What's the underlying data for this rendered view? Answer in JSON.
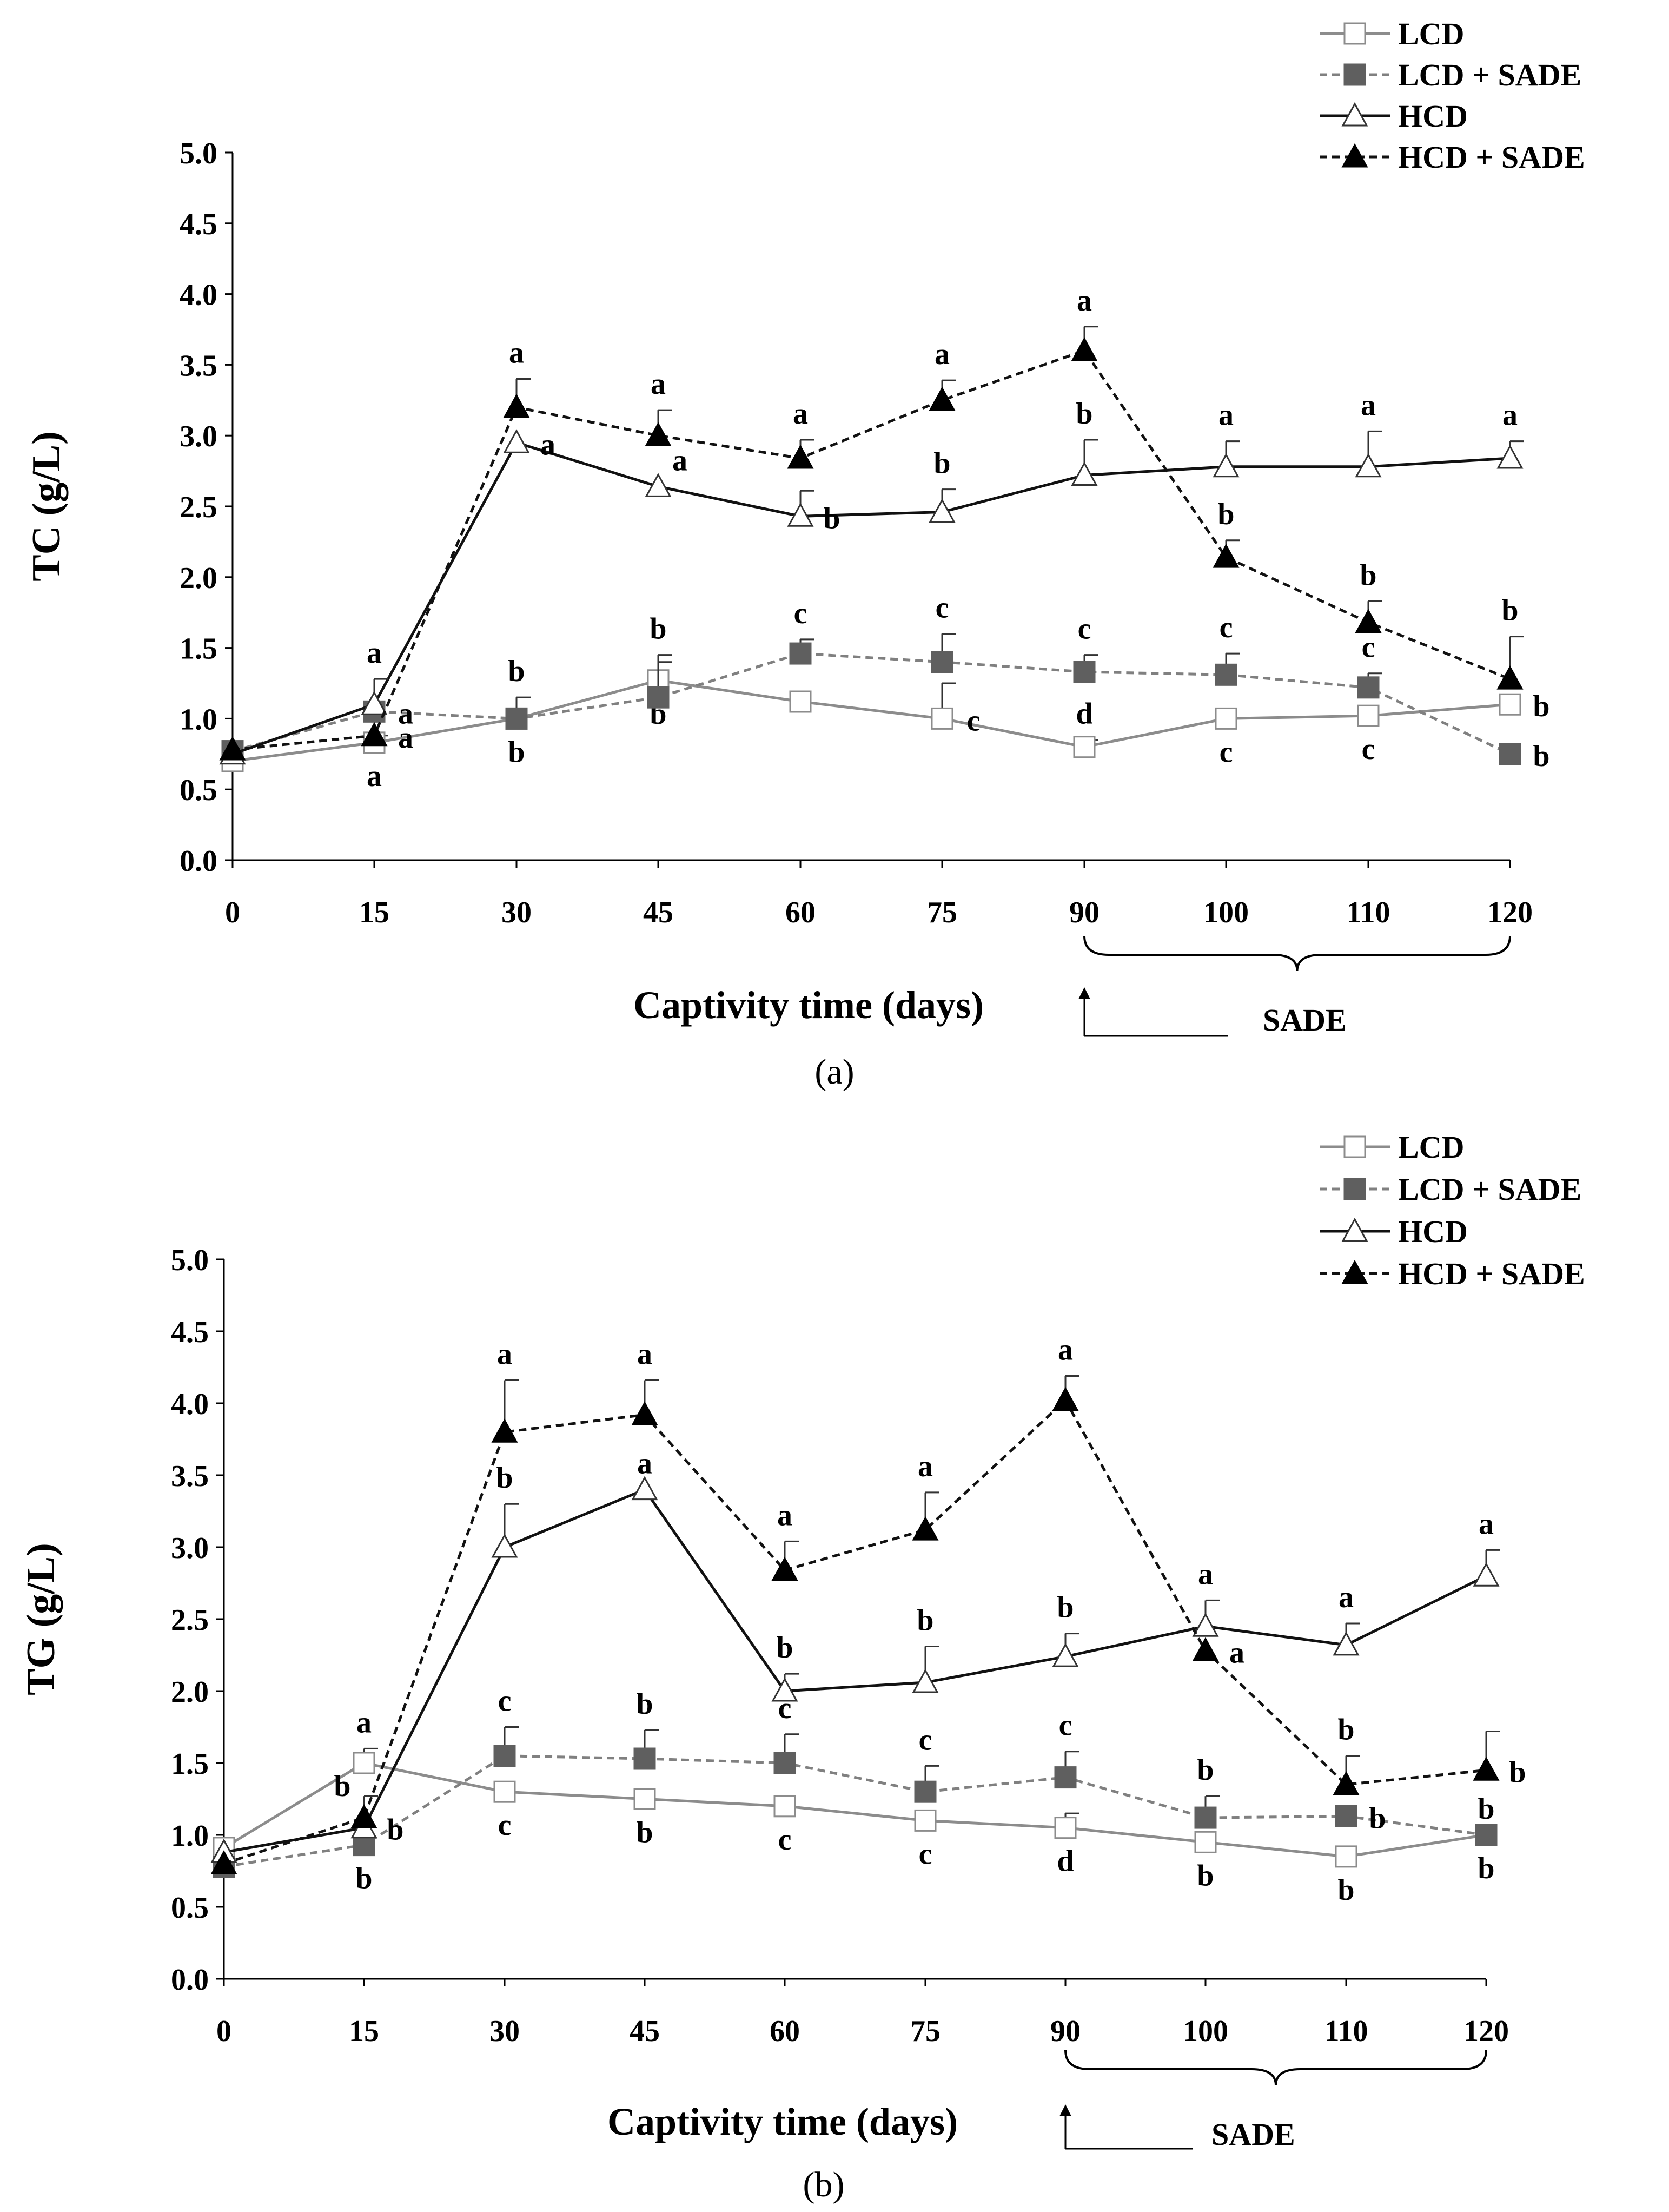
{
  "chart_data": [
    {
      "type": "line",
      "panel_label": "(a)",
      "ylabel": "TC (g/L)",
      "xlabel": "Captivity time (days)",
      "annotation": "SADE",
      "ylim": [
        0,
        5
      ],
      "yticks": [
        "0.0",
        "0.5",
        "1.0",
        "1.5",
        "2.0",
        "2.5",
        "3.0",
        "3.5",
        "4.0",
        "4.5",
        "5.0"
      ],
      "categories": [
        "0",
        "15",
        "30",
        "45",
        "60",
        "75",
        "90",
        "100",
        "110",
        "120"
      ],
      "series": [
        {
          "name": "LCD",
          "values": [
            0.7,
            0.83,
            1.0,
            1.27,
            1.12,
            1.0,
            0.8,
            1.0,
            1.02,
            1.1
          ],
          "errors": [
            0,
            0.05,
            0,
            0.13,
            0,
            0.25,
            0.05,
            0,
            0,
            0
          ],
          "letters": [
            "",
            "a",
            "b",
            "b",
            "",
            "c",
            "d",
            "c",
            "c",
            "b"
          ]
        },
        {
          "name": "LCD + SADE",
          "values": [
            0.77,
            1.05,
            1.0,
            1.15,
            1.46,
            1.4,
            1.33,
            1.31,
            1.22,
            0.75
          ],
          "errors": [
            0,
            0,
            0.15,
            0.3,
            0.1,
            0.2,
            0.12,
            0.15,
            0.1,
            0
          ],
          "letters": [
            "",
            "a",
            "b",
            "b",
            "c",
            "c",
            "c",
            "c",
            "c",
            "b"
          ]
        },
        {
          "name": "HCD",
          "values": [
            0.75,
            1.1,
            2.95,
            2.64,
            2.43,
            2.46,
            2.72,
            2.78,
            2.78,
            2.84
          ],
          "errors": [
            0,
            0.18,
            0,
            0,
            0.18,
            0.16,
            0.25,
            0.18,
            0.25,
            0.12
          ],
          "letters": [
            "",
            "a",
            "a",
            "a",
            "b",
            "b",
            "b",
            "a",
            "a",
            "a"
          ]
        },
        {
          "name": "HCD + SADE",
          "values": [
            0.78,
            0.88,
            3.2,
            3.0,
            2.84,
            3.25,
            3.6,
            2.14,
            1.68,
            1.28
          ],
          "errors": [
            0,
            0,
            0.2,
            0.18,
            0.13,
            0.14,
            0.17,
            0.12,
            0.15,
            0.3
          ],
          "letters": [
            "",
            "a",
            "a",
            "a",
            "a",
            "a",
            "a",
            "b",
            "b",
            "b"
          ]
        }
      ]
    },
    {
      "type": "line",
      "panel_label": "(b)",
      "ylabel": "TG (g/L)",
      "xlabel": "Captivity time (days)",
      "annotation": "SADE",
      "ylim": [
        0,
        5
      ],
      "yticks": [
        "0.0",
        "0.5",
        "1.0",
        "1.5",
        "2.0",
        "2.5",
        "3.0",
        "3.5",
        "4.0",
        "4.5",
        "5.0"
      ],
      "categories": [
        "0",
        "15",
        "30",
        "45",
        "60",
        "75",
        "90",
        "100",
        "110",
        "120"
      ],
      "series": [
        {
          "name": "LCD",
          "values": [
            0.91,
            1.5,
            1.3,
            1.25,
            1.2,
            1.1,
            1.05,
            0.95,
            0.85,
            1.0
          ],
          "errors": [
            0,
            0.1,
            0,
            0,
            0,
            0,
            0.1,
            0,
            0,
            0
          ],
          "letters": [
            "",
            "a",
            "c",
            "b",
            "c",
            "c",
            "d",
            "b",
            "b",
            "b"
          ]
        },
        {
          "name": "LCD + SADE",
          "values": [
            0.78,
            0.93,
            1.55,
            1.53,
            1.5,
            1.3,
            1.4,
            1.12,
            1.13,
            1.0
          ],
          "errors": [
            0,
            0,
            0.2,
            0.2,
            0.2,
            0.18,
            0.18,
            0.15,
            0,
            0
          ],
          "letters": [
            "",
            "b",
            "c",
            "b",
            "c",
            "c",
            "c",
            "b",
            "b",
            "b"
          ]
        },
        {
          "name": "HCD",
          "values": [
            0.88,
            1.05,
            3.0,
            3.4,
            2.0,
            2.06,
            2.24,
            2.45,
            2.32,
            2.8
          ],
          "errors": [
            0,
            0.22,
            0.3,
            0,
            0.12,
            0.25,
            0.16,
            0.18,
            0.15,
            0.18
          ],
          "letters": [
            "",
            "b",
            "b",
            "a",
            "b",
            "b",
            "b",
            "a",
            "a",
            "a"
          ]
        },
        {
          "name": "HCD + SADE",
          "values": [
            0.8,
            1.12,
            3.8,
            3.92,
            2.84,
            3.12,
            4.02,
            2.28,
            1.35,
            1.45
          ],
          "errors": [
            0,
            0,
            0.36,
            0.24,
            0.2,
            0.26,
            0.17,
            0,
            0.2,
            0.27
          ],
          "letters": [
            "",
            "b",
            "a",
            "a",
            "a",
            "a",
            "a",
            "a",
            "b",
            "b"
          ]
        }
      ]
    }
  ]
}
